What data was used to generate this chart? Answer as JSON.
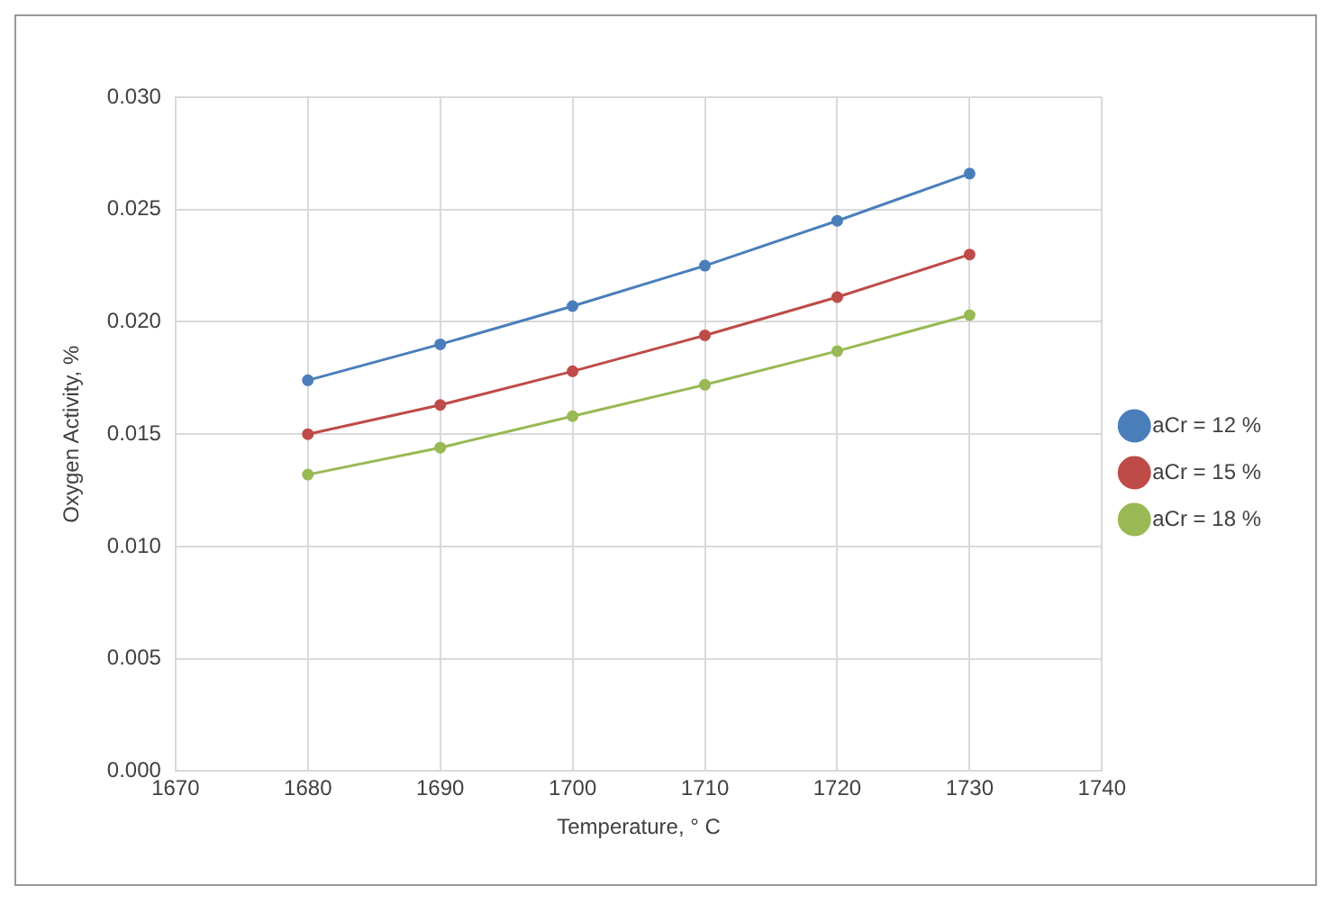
{
  "chart_data": {
    "type": "line",
    "xlabel": "Temperature, ° C",
    "ylabel": "Oxygen Activity, %",
    "x": [
      1680,
      1690,
      1700,
      1710,
      1720,
      1730
    ],
    "series": [
      {
        "name": "aCr = 12 %",
        "color": "#4a7ebb",
        "values": [
          0.0174,
          0.019,
          0.0207,
          0.0225,
          0.0245,
          0.0266
        ]
      },
      {
        "name": "aCr = 15 %",
        "color": "#be4b48",
        "values": [
          0.015,
          0.0163,
          0.0178,
          0.0194,
          0.0211,
          0.023
        ]
      },
      {
        "name": "aCr = 18 %",
        "color": "#98b954",
        "values": [
          0.0132,
          0.0144,
          0.0158,
          0.0172,
          0.0187,
          0.0203
        ]
      }
    ],
    "xlim": [
      1670,
      1740
    ],
    "xticks": [
      1670,
      1680,
      1690,
      1700,
      1710,
      1720,
      1730,
      1740
    ],
    "ylim": [
      0,
      0.03
    ],
    "yticks": [
      {
        "value": 0,
        "label": "0.000"
      },
      {
        "value": 0.005,
        "label": "0.005"
      },
      {
        "value": 0.01,
        "label": "0.010"
      },
      {
        "value": 0.015,
        "label": "0.015"
      },
      {
        "value": 0.02,
        "label": "0.020"
      },
      {
        "value": 0.025,
        "label": "0.025"
      },
      {
        "value": 0.03,
        "label": "0.030"
      }
    ],
    "grid": true,
    "legend": "right",
    "marker": "circle",
    "line_style": "solid"
  }
}
